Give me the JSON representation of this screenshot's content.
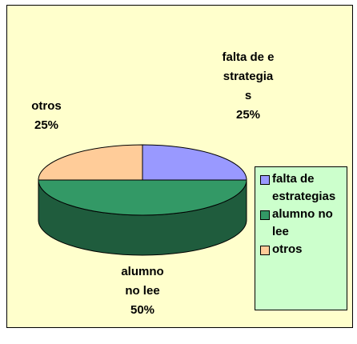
{
  "chart_data": {
    "type": "pie",
    "categories": [
      "falta de estrategias",
      "alumno no lee",
      "otros"
    ],
    "values": [
      25,
      50,
      25
    ],
    "value_labels": [
      "25%",
      "50%",
      "25%"
    ],
    "colors": [
      "#9999ff",
      "#339966",
      "#ffcc99"
    ],
    "legend": "right"
  }
}
